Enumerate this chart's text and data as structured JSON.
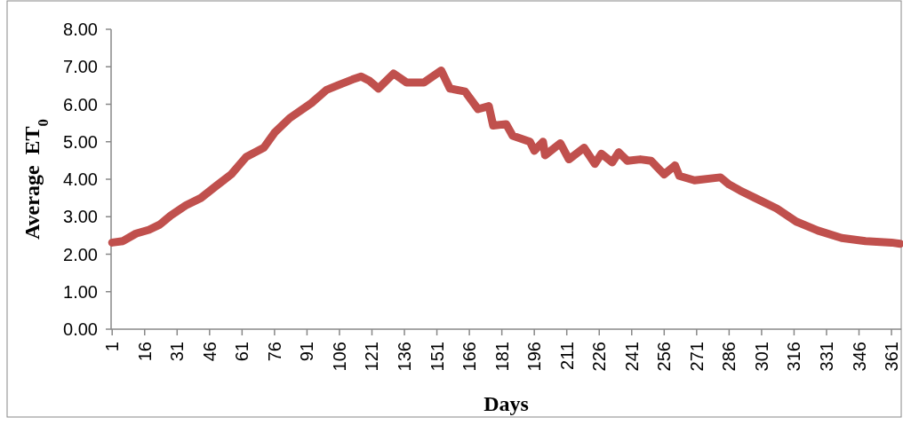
{
  "chart_data": {
    "type": "line",
    "xlabel": "Days",
    "ylabel": "Average  ET$_{0}$",
    "xlim": [
      0.5,
      365.5
    ],
    "xticks": [
      1,
      16,
      31,
      46,
      61,
      76,
      91,
      106,
      121,
      136,
      151,
      166,
      181,
      196,
      211,
      226,
      241,
      256,
      271,
      286,
      301,
      316,
      331,
      346,
      361
    ],
    "ylim": [
      0,
      8
    ],
    "yticks": [
      {
        "value": 0,
        "label": "0.00"
      },
      {
        "value": 1,
        "label": "1.00"
      },
      {
        "value": 2,
        "label": "2.00"
      },
      {
        "value": 3,
        "label": "3.00"
      },
      {
        "value": 4,
        "label": "4.00"
      },
      {
        "value": 5,
        "label": "5.00"
      },
      {
        "value": 6,
        "label": "6.00"
      },
      {
        "value": 7,
        "label": "7.00"
      },
      {
        "value": 8,
        "label": "8.00"
      }
    ],
    "grid": false,
    "line_style": "solid",
    "series": [
      {
        "color": "#c0504d",
        "x": [
          1,
          6,
          12,
          18,
          23,
          28,
          35,
          42,
          49,
          56,
          63,
          71,
          76,
          83,
          93,
          100,
          105,
          112,
          116,
          120,
          124,
          131,
          137,
          145,
          153,
          157,
          164,
          170,
          175,
          177,
          183,
          186,
          194,
          196,
          200,
          201,
          208,
          212,
          219,
          224,
          227,
          232,
          235,
          239,
          245,
          250,
          256,
          261,
          263,
          270,
          282,
          286,
          291,
          298,
          308,
          317,
          327,
          338,
          349,
          361,
          365
        ],
        "values": [
          2.31,
          2.35,
          2.55,
          2.65,
          2.79,
          3.03,
          3.3,
          3.5,
          3.82,
          4.13,
          4.6,
          4.84,
          5.24,
          5.63,
          6.03,
          6.38,
          6.5,
          6.66,
          6.74,
          6.62,
          6.42,
          6.82,
          6.58,
          6.58,
          6.9,
          6.42,
          6.34,
          5.87,
          5.95,
          5.43,
          5.47,
          5.16,
          5.0,
          4.76,
          5.0,
          4.64,
          4.96,
          4.53,
          4.84,
          4.41,
          4.68,
          4.45,
          4.72,
          4.49,
          4.53,
          4.49,
          4.13,
          4.37,
          4.09,
          3.97,
          4.05,
          3.86,
          3.7,
          3.5,
          3.22,
          2.87,
          2.63,
          2.43,
          2.35,
          2.31,
          2.28
        ]
      }
    ]
  }
}
